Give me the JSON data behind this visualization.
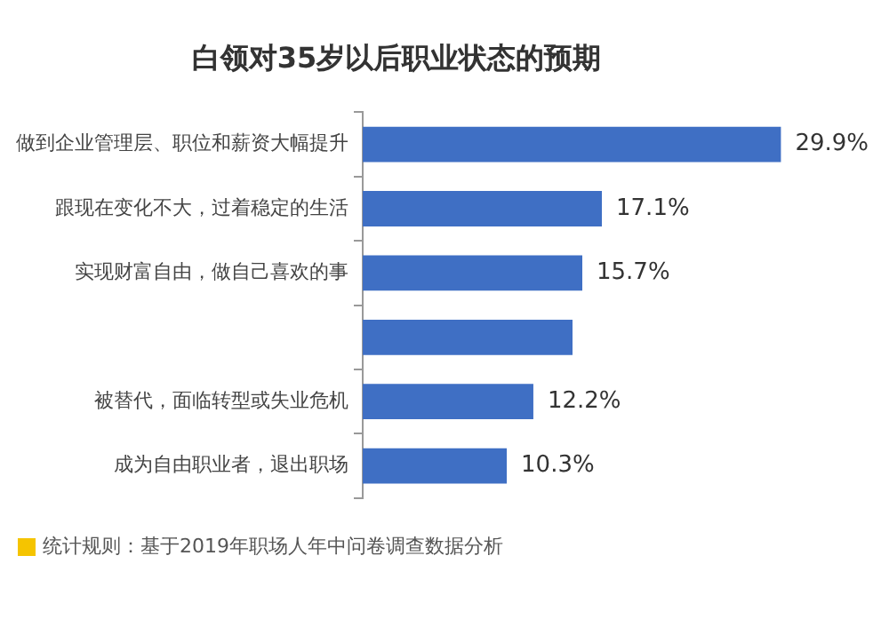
{
  "chart_data": {
    "type": "bar",
    "orientation": "horizontal",
    "title": "白领对35岁以后职业状态的预期",
    "categories": [
      "做到企业管理层、职位和薪资大幅提升",
      "跟现在变化不大，过着稳定的生活",
      "实现财富自由，做自己喜欢的事",
      null,
      "被替代，面临转型或失业危机",
      "成为自由职业者，退出职场"
    ],
    "values": [
      29.9,
      17.1,
      15.7,
      15.0,
      12.2,
      10.3
    ],
    "value_labels": [
      "29.9%",
      "17.1%",
      "15.7%",
      null,
      "12.2%",
      "10.3%"
    ],
    "color": "#3f6fc4",
    "annotations": [
      "统计规则：基于2019年职场人年中问卷调查数据分析"
    ]
  }
}
